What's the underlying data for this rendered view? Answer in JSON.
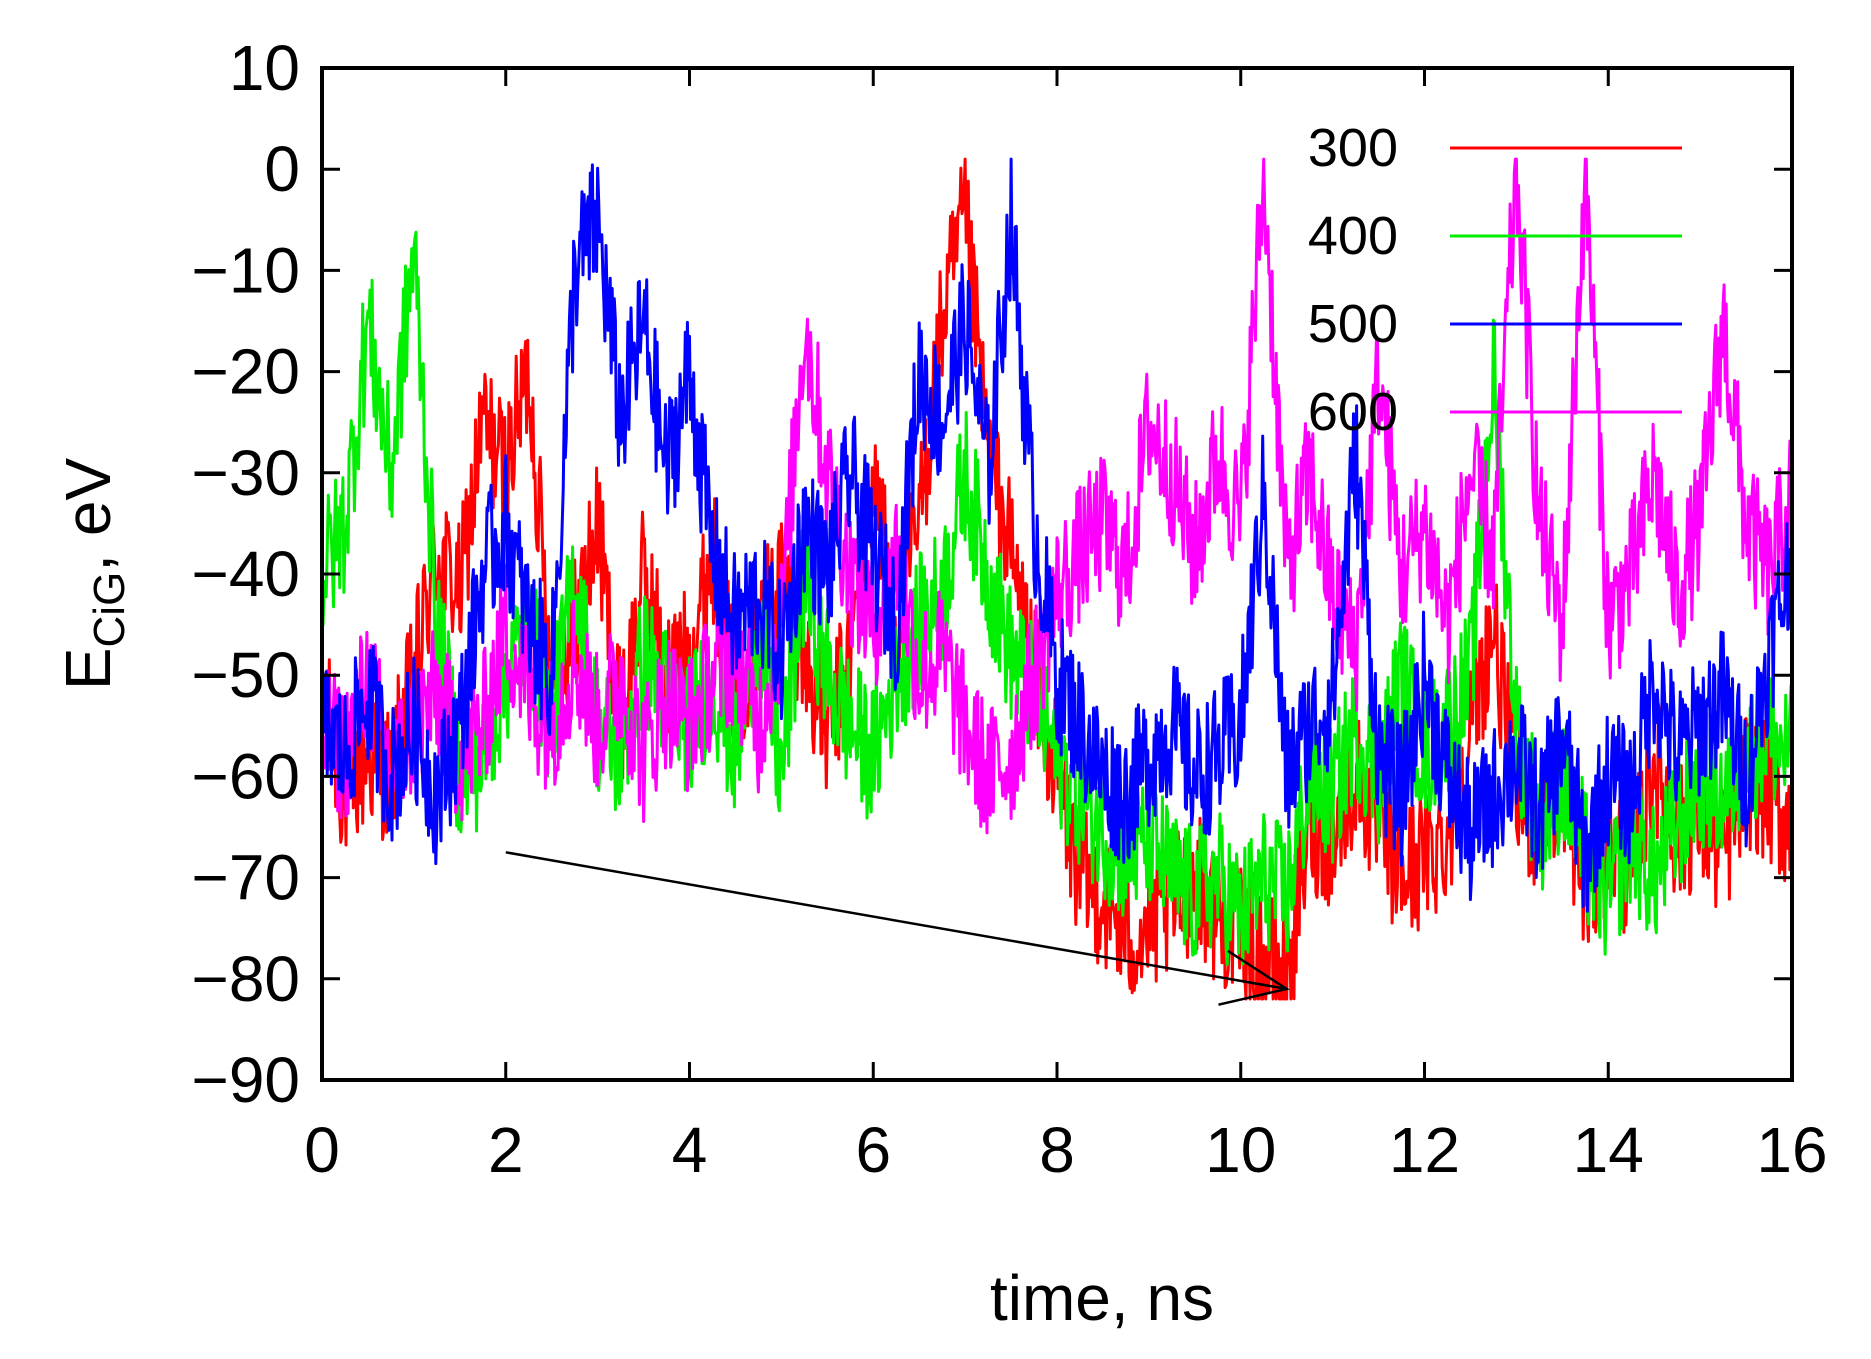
{
  "chart_data": {
    "type": "line",
    "title": "",
    "xlabel": "time, ns",
    "ylabel": {
      "main": "E",
      "sub": "CiG",
      "suffix": ", eV"
    },
    "xlim": [
      0,
      16
    ],
    "ylim": [
      -90,
      10
    ],
    "xticks": [
      0,
      2,
      4,
      6,
      8,
      10,
      12,
      14,
      16
    ],
    "yticks": [
      10,
      0,
      -10,
      -20,
      -30,
      -40,
      -50,
      -60,
      -70,
      -80,
      -90
    ],
    "grid": false,
    "legend": "top-right",
    "series": [
      {
        "name": "300",
        "color": "#ff0000",
        "x": [
          0,
          0.25,
          0.5,
          0.75,
          1,
          1.25,
          1.5,
          1.75,
          2,
          2.25,
          2.5,
          2.75,
          3,
          3.25,
          3.5,
          3.75,
          4,
          4.25,
          4.5,
          4.75,
          5,
          5.25,
          5.5,
          5.75,
          6,
          6.25,
          6.5,
          6.75,
          7,
          7.25,
          7.5,
          7.75,
          8,
          8.25,
          8.5,
          8.75,
          9,
          9.25,
          9.5,
          9.75,
          10,
          10.25,
          10.5,
          10.75,
          11,
          11.25,
          11.5,
          11.75,
          12,
          12.25,
          12.5,
          12.75,
          13,
          13.25,
          13.5,
          13.75,
          14,
          14.25,
          14.5,
          14.75,
          15,
          15.25,
          15.5,
          15.75,
          16
        ],
        "y": [
          -52,
          -62,
          -58,
          -60,
          -50,
          -38,
          -42,
          -25,
          -30,
          -20,
          -50,
          -45,
          -35,
          -55,
          -40,
          -50,
          -48,
          -38,
          -52,
          -45,
          -40,
          -48,
          -56,
          -48,
          -30,
          -45,
          -35,
          -15,
          -5,
          -28,
          -38,
          -50,
          -60,
          -70,
          -72,
          -76,
          -75,
          -73,
          -70,
          -74,
          -75,
          -78,
          -80,
          -65,
          -66,
          -60,
          -65,
          -70,
          -68,
          -66,
          -55,
          -45,
          -62,
          -65,
          -60,
          -72,
          -66,
          -70,
          -58,
          -66,
          -64,
          -68,
          -60,
          -62,
          -65
        ]
      },
      {
        "name": "400",
        "color": "#00ee00",
        "x": [
          0,
          0.25,
          0.5,
          0.75,
          1,
          1.25,
          1.5,
          1.75,
          2,
          2.25,
          2.5,
          2.75,
          3,
          3.25,
          3.5,
          3.75,
          4,
          4.25,
          4.5,
          4.75,
          5,
          5.25,
          5.5,
          5.75,
          6,
          6.25,
          6.5,
          6.75,
          7,
          7.25,
          7.5,
          7.75,
          8,
          8.25,
          8.5,
          8.75,
          9,
          9.25,
          9.5,
          9.75,
          10,
          10.25,
          10.5,
          10.75,
          11,
          11.25,
          11.5,
          11.75,
          12,
          12.25,
          12.5,
          12.75,
          13,
          13.25,
          13.5,
          13.75,
          14,
          14.25,
          14.5,
          14.75,
          15,
          15.25,
          15.5,
          15.75,
          16
        ],
        "y": [
          -40,
          -35,
          -15,
          -30,
          -8,
          -45,
          -60,
          -58,
          -50,
          -45,
          -55,
          -40,
          -55,
          -58,
          -48,
          -52,
          -55,
          -50,
          -58,
          -45,
          -60,
          -40,
          -50,
          -55,
          -58,
          -50,
          -45,
          -42,
          -30,
          -40,
          -48,
          -52,
          -58,
          -62,
          -65,
          -68,
          -66,
          -70,
          -72,
          -70,
          -74,
          -70,
          -72,
          -60,
          -62,
          -55,
          -60,
          -50,
          -58,
          -55,
          -50,
          -20,
          -55,
          -65,
          -60,
          -68,
          -72,
          -66,
          -70,
          -65,
          -60,
          -62,
          -58,
          -56,
          -58
        ]
      },
      {
        "name": "500",
        "color": "#0000ff",
        "x": [
          0,
          0.25,
          0.5,
          0.75,
          1,
          1.25,
          1.5,
          1.75,
          2,
          2.25,
          2.5,
          2.75,
          3,
          3.25,
          3.5,
          3.75,
          4,
          4.25,
          4.5,
          4.75,
          5,
          5.25,
          5.5,
          5.75,
          6,
          6.25,
          6.5,
          6.75,
          7,
          7.25,
          7.5,
          7.75,
          8,
          8.25,
          8.5,
          8.75,
          9,
          9.25,
          9.5,
          9.75,
          10,
          10.25,
          10.5,
          10.75,
          11,
          11.25,
          11.5,
          11.75,
          12,
          12.25,
          12.5,
          12.75,
          13,
          13.25,
          13.5,
          13.75,
          14,
          14.25,
          14.5,
          14.75,
          15,
          15.25,
          15.5,
          15.75,
          16
        ],
        "y": [
          -55,
          -58,
          -52,
          -60,
          -55,
          -62,
          -55,
          -40,
          -35,
          -45,
          -50,
          -10,
          -5,
          -25,
          -15,
          -30,
          -20,
          -38,
          -45,
          -42,
          -48,
          -35,
          -40,
          -30,
          -38,
          -45,
          -20,
          -25,
          -15,
          -30,
          -5,
          -35,
          -50,
          -55,
          -60,
          -62,
          -58,
          -55,
          -60,
          -58,
          -55,
          -32,
          -60,
          -55,
          -52,
          -28,
          -58,
          -62,
          -50,
          -60,
          -66,
          -62,
          -58,
          -64,
          -56,
          -68,
          -60,
          -62,
          -50,
          -58,
          -55,
          -52,
          -60,
          -48,
          -38
        ]
      },
      {
        "name": "600",
        "color": "#ff00ff",
        "x": [
          0,
          0.25,
          0.5,
          0.75,
          1,
          1.25,
          1.5,
          1.75,
          2,
          2.25,
          2.5,
          2.75,
          3,
          3.25,
          3.5,
          3.75,
          4,
          4.25,
          4.5,
          4.75,
          5,
          5.25,
          5.5,
          5.75,
          6,
          6.25,
          6.5,
          6.75,
          7,
          7.25,
          7.5,
          7.75,
          8,
          8.25,
          8.5,
          8.75,
          9,
          9.25,
          9.5,
          9.75,
          10,
          10.25,
          10.5,
          10.75,
          11,
          11.25,
          11.5,
          11.75,
          12,
          12.25,
          12.5,
          12.75,
          13,
          13.25,
          13.5,
          13.75,
          14,
          14.25,
          14.5,
          14.75,
          15,
          15.25,
          15.5,
          15.75,
          16
        ],
        "y": [
          -55,
          -58,
          -50,
          -60,
          -55,
          -52,
          -58,
          -55,
          -45,
          -52,
          -55,
          -48,
          -55,
          -50,
          -58,
          -52,
          -55,
          -50,
          -48,
          -55,
          -45,
          -15,
          -30,
          -40,
          -45,
          -38,
          -50,
          -48,
          -55,
          -60,
          -58,
          -50,
          -42,
          -38,
          -35,
          -40,
          -25,
          -30,
          -38,
          -28,
          -35,
          0,
          -40,
          -30,
          -42,
          -48,
          -20,
          -40,
          -35,
          -45,
          -30,
          -38,
          0,
          -35,
          -45,
          0,
          -45,
          -40,
          -30,
          -42,
          -35,
          -15,
          -35,
          -40,
          -32
        ]
      }
    ],
    "annotations": [
      {
        "type": "arrow",
        "from": [
          2,
          -67.5
        ],
        "to": [
          10.5,
          -81
        ]
      }
    ]
  }
}
